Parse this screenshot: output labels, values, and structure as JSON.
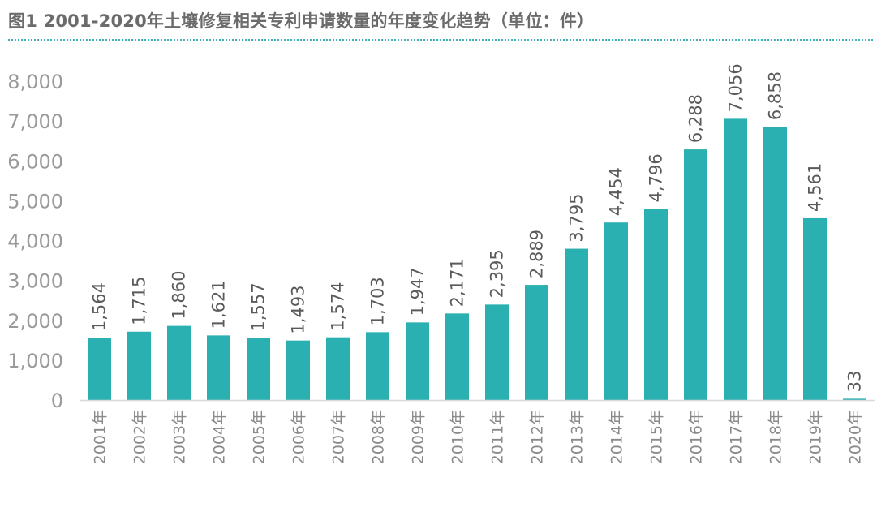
{
  "chart_data": {
    "type": "bar",
    "title": "图1 2001-2020年土壤修复相关专利申请数量的年度变化趋势（单位：件）",
    "categories": [
      "2001年",
      "2002年",
      "2003年",
      "2004年",
      "2005年",
      "2006年",
      "2007年",
      "2008年",
      "2009年",
      "2010年",
      "2011年",
      "2012年",
      "2013年",
      "2014年",
      "2015年",
      "2016年",
      "2017年",
      "2018年",
      "2019年",
      "2020年"
    ],
    "values": [
      1564,
      1715,
      1860,
      1621,
      1557,
      1493,
      1574,
      1703,
      1947,
      2171,
      2395,
      2889,
      3795,
      4454,
      4796,
      6288,
      7056,
      6858,
      4561,
      33
    ],
    "value_labels": [
      "1,564",
      "1,715",
      "1,860",
      "1,621",
      "1,557",
      "1,493",
      "1,574",
      "1,703",
      "1,947",
      "2,171",
      "2,395",
      "2,889",
      "3,795",
      "4,454",
      "4,796",
      "6,288",
      "7,056",
      "6,858",
      "4,561",
      "33"
    ],
    "y_ticks": [
      "0",
      "1,000",
      "2,000",
      "3,000",
      "4,000",
      "5,000",
      "6,000",
      "7,000",
      "8,000"
    ],
    "ylim": [
      0,
      8000
    ],
    "bar_color": "#2bb0b2",
    "xlabel": "",
    "ylabel": ""
  }
}
